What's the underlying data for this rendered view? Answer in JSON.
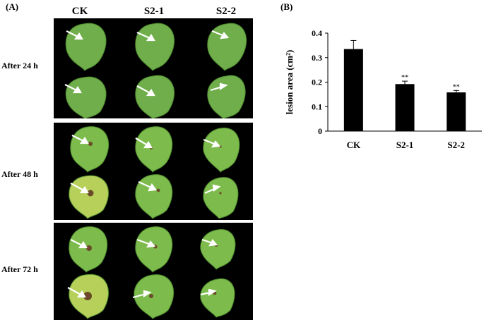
{
  "panel_a": {
    "label": "(A)",
    "columns": [
      "CK",
      "S2-1",
      "S2-2"
    ],
    "rows": [
      "After 24 h",
      "After 48 h",
      "After 72 h"
    ]
  },
  "panel_b": {
    "label": "(B)"
  },
  "chart_data": {
    "type": "bar",
    "categories": [
      "CK",
      "S2-1",
      "S2-2"
    ],
    "values": [
      0.335,
      0.192,
      0.158
    ],
    "errors": [
      0.035,
      0.012,
      0.008
    ],
    "annotations": [
      "",
      "**",
      "**"
    ],
    "ylabel": "lesion  area  (cm²)",
    "ylim": [
      0,
      0.4
    ],
    "yticks": [
      "0",
      "0.1",
      "0.2",
      "0.3",
      "0.4"
    ],
    "bar_color": "#000000"
  }
}
